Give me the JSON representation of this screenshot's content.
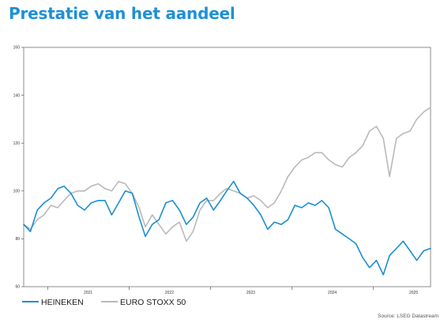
{
  "title": "Prestatie van het aandeel",
  "source": "Source: LSEG Datastream",
  "colors": {
    "title": "#1e90d6",
    "heineken": "#1a8fce",
    "stoxx": "#b9b9b9",
    "axis": "#444444"
  },
  "chart_data": {
    "type": "line",
    "title": "",
    "xlabel": "",
    "ylabel": "",
    "ylim": [
      60,
      160
    ],
    "yticks": [
      "60",
      "80",
      "100",
      "120",
      "140",
      "160"
    ],
    "xlim": [
      "2020-09-15",
      "2025-09-15"
    ],
    "xticks": [
      "2021",
      "2022",
      "2023",
      "2024",
      "2025"
    ],
    "grid": false,
    "legend": "bottom-left",
    "series": [
      {
        "name": "HEINEKEN",
        "color": "#1a8fce",
        "x": [
          "2020-09-15",
          "2020-10-15",
          "2020-11-15",
          "2020-12-15",
          "2021-01-15",
          "2021-02-15",
          "2021-03-15",
          "2021-04-15",
          "2021-05-15",
          "2021-06-15",
          "2021-07-15",
          "2021-08-15",
          "2021-09-15",
          "2021-10-15",
          "2021-11-15",
          "2021-12-15",
          "2022-01-15",
          "2022-02-15",
          "2022-03-15",
          "2022-04-15",
          "2022-05-15",
          "2022-06-15",
          "2022-07-15",
          "2022-08-15",
          "2022-09-15",
          "2022-10-15",
          "2022-11-15",
          "2022-12-15",
          "2023-01-15",
          "2023-02-15",
          "2023-03-15",
          "2023-04-15",
          "2023-05-15",
          "2023-06-15",
          "2023-07-15",
          "2023-08-15",
          "2023-09-15",
          "2023-10-15",
          "2023-11-15",
          "2023-12-15",
          "2024-01-15",
          "2024-02-15",
          "2024-03-15",
          "2024-04-15",
          "2024-05-15",
          "2024-06-15",
          "2024-07-15",
          "2024-08-15",
          "2024-09-15",
          "2024-10-15",
          "2024-11-15",
          "2024-12-15",
          "2025-01-15",
          "2025-02-15",
          "2025-03-15",
          "2025-04-15",
          "2025-05-15",
          "2025-06-15",
          "2025-07-15",
          "2025-08-15",
          "2025-09-15"
        ],
        "values": [
          86,
          83,
          92,
          95,
          97,
          101,
          102,
          99,
          94,
          92,
          95,
          96,
          96,
          90,
          95,
          100,
          99,
          89,
          81,
          86,
          88,
          95,
          96,
          92,
          86,
          89,
          95,
          97,
          92,
          96,
          100,
          104,
          99,
          97,
          94,
          90,
          84,
          87,
          86,
          88,
          94,
          93,
          95,
          94,
          96,
          93,
          84,
          82,
          80,
          78,
          72,
          68,
          71,
          65,
          73,
          76,
          79,
          75,
          71,
          75,
          76
        ]
      },
      {
        "name": "EURO STOXX 50",
        "color": "#b9b9b9",
        "x": [
          "2020-09-15",
          "2020-10-15",
          "2020-11-15",
          "2020-12-15",
          "2021-01-15",
          "2021-02-15",
          "2021-03-15",
          "2021-04-15",
          "2021-05-15",
          "2021-06-15",
          "2021-07-15",
          "2021-08-15",
          "2021-09-15",
          "2021-10-15",
          "2021-11-15",
          "2021-12-15",
          "2022-01-15",
          "2022-02-15",
          "2022-03-15",
          "2022-04-15",
          "2022-05-15",
          "2022-06-15",
          "2022-07-15",
          "2022-08-15",
          "2022-09-15",
          "2022-10-15",
          "2022-11-15",
          "2022-12-15",
          "2023-01-15",
          "2023-02-15",
          "2023-03-15",
          "2023-04-15",
          "2023-05-15",
          "2023-06-15",
          "2023-07-15",
          "2023-08-15",
          "2023-09-15",
          "2023-10-15",
          "2023-11-15",
          "2023-12-15",
          "2024-01-15",
          "2024-02-15",
          "2024-03-15",
          "2024-04-15",
          "2024-05-15",
          "2024-06-15",
          "2024-07-15",
          "2024-08-15",
          "2024-09-15",
          "2024-10-15",
          "2024-11-15",
          "2024-12-15",
          "2025-01-15",
          "2025-02-15",
          "2025-03-15",
          "2025-04-15",
          "2025-05-15",
          "2025-06-15",
          "2025-07-15",
          "2025-08-15",
          "2025-09-15"
        ],
        "values": [
          86,
          84,
          88,
          90,
          94,
          93,
          96,
          99,
          100,
          100,
          102,
          103,
          101,
          100,
          104,
          103,
          99,
          93,
          85,
          90,
          86,
          82,
          85,
          87,
          79,
          83,
          92,
          96,
          96,
          99,
          101,
          100,
          99,
          97,
          98,
          96,
          93,
          95,
          100,
          106,
          110,
          113,
          114,
          116,
          116,
          113,
          111,
          110,
          114,
          116,
          119,
          125,
          127,
          122,
          106,
          122,
          124,
          125,
          130,
          133,
          135
        ]
      }
    ]
  }
}
